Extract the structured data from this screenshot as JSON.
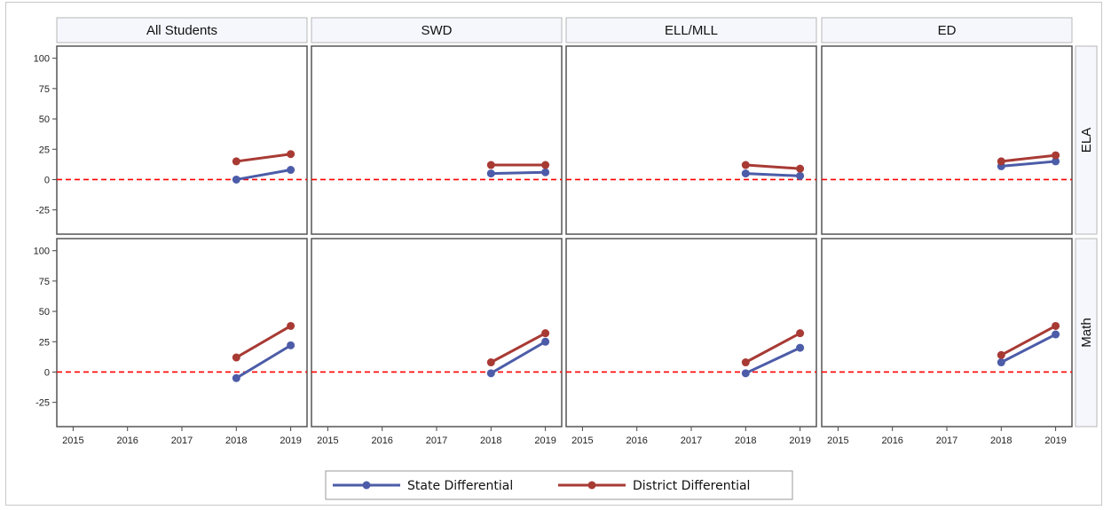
{
  "chart_data": {
    "type": "line",
    "columns": [
      "All Students",
      "SWD",
      "ELL/MLL",
      "ED"
    ],
    "rows": [
      "ELA",
      "Math"
    ],
    "x_ticks": [
      "2015",
      "2016",
      "2017",
      "2018",
      "2019"
    ],
    "y_ticks": [
      "100",
      "75",
      "50",
      "25",
      "0",
      "-25"
    ],
    "ylim": [
      -45,
      110
    ],
    "xlim": [
      2014.7,
      2019.3
    ],
    "reference_line": {
      "y": 0,
      "color": "#ff0000",
      "style": "dashed"
    },
    "series_def": [
      {
        "name": "State Differential",
        "color": "#4c5ca8"
      },
      {
        "name": "District Differential",
        "color": "#a83a34"
      }
    ],
    "panels": [
      {
        "row": "ELA",
        "column": "All Students",
        "series": [
          {
            "name": "State Differential",
            "x": [
              2018,
              2019
            ],
            "y": [
              0,
              8
            ]
          },
          {
            "name": "District Differential",
            "x": [
              2018,
              2019
            ],
            "y": [
              15,
              21
            ]
          }
        ]
      },
      {
        "row": "ELA",
        "column": "SWD",
        "series": [
          {
            "name": "State Differential",
            "x": [
              2018,
              2019
            ],
            "y": [
              5,
              6
            ]
          },
          {
            "name": "District Differential",
            "x": [
              2018,
              2019
            ],
            "y": [
              12,
              12
            ]
          }
        ]
      },
      {
        "row": "ELA",
        "column": "ELL/MLL",
        "series": [
          {
            "name": "State Differential",
            "x": [
              2018,
              2019
            ],
            "y": [
              5,
              3
            ]
          },
          {
            "name": "District Differential",
            "x": [
              2018,
              2019
            ],
            "y": [
              12,
              9
            ]
          }
        ]
      },
      {
        "row": "ELA",
        "column": "ED",
        "series": [
          {
            "name": "State Differential",
            "x": [
              2018,
              2019
            ],
            "y": [
              11,
              15
            ]
          },
          {
            "name": "District Differential",
            "x": [
              2018,
              2019
            ],
            "y": [
              15,
              20
            ]
          }
        ]
      },
      {
        "row": "Math",
        "column": "All Students",
        "series": [
          {
            "name": "State Differential",
            "x": [
              2018,
              2019
            ],
            "y": [
              -5,
              22
            ]
          },
          {
            "name": "District Differential",
            "x": [
              2018,
              2019
            ],
            "y": [
              12,
              38
            ]
          }
        ]
      },
      {
        "row": "Math",
        "column": "SWD",
        "series": [
          {
            "name": "State Differential",
            "x": [
              2018,
              2019
            ],
            "y": [
              -1,
              25
            ]
          },
          {
            "name": "District Differential",
            "x": [
              2018,
              2019
            ],
            "y": [
              8,
              32
            ]
          }
        ]
      },
      {
        "row": "Math",
        "column": "ELL/MLL",
        "series": [
          {
            "name": "State Differential",
            "x": [
              2018,
              2019
            ],
            "y": [
              -1,
              20
            ]
          },
          {
            "name": "District Differential",
            "x": [
              2018,
              2019
            ],
            "y": [
              8,
              32
            ]
          }
        ]
      },
      {
        "row": "Math",
        "column": "ED",
        "series": [
          {
            "name": "State Differential",
            "x": [
              2018,
              2019
            ],
            "y": [
              8,
              31
            ]
          },
          {
            "name": "District Differential",
            "x": [
              2018,
              2019
            ],
            "y": [
              14,
              38
            ]
          }
        ]
      }
    ],
    "legend": [
      "State Differential",
      "District Differential"
    ],
    "legend_position": "bottom-center",
    "grid": false
  }
}
